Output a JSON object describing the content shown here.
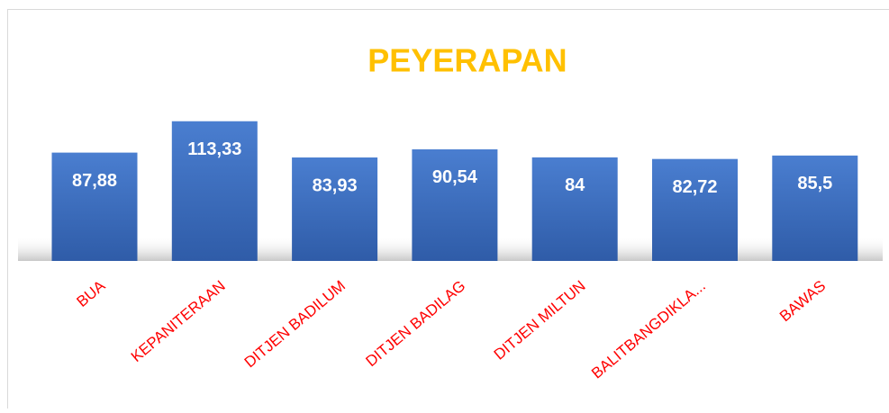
{
  "chart_data": {
    "type": "bar",
    "title": "PEYERAPAN",
    "categories": [
      "BUA",
      "KEPANITERAAN",
      "DITJEN BADILUM",
      "DITJEN BADILAG",
      "DITJEN MILTUN",
      "BALITBANGDIKLA...",
      "BAWAS"
    ],
    "values": [
      87.88,
      113.33,
      83.93,
      90.54,
      84,
      82.72,
      85.5
    ],
    "value_labels": [
      "87,88",
      "113,33",
      "83,93",
      "90,54",
      "84",
      "82,72",
      "85,5"
    ],
    "color": "#4472c4",
    "title_color": "#ffc000",
    "category_label_color": "#ff0000",
    "value_label_color": "#ffffff"
  }
}
